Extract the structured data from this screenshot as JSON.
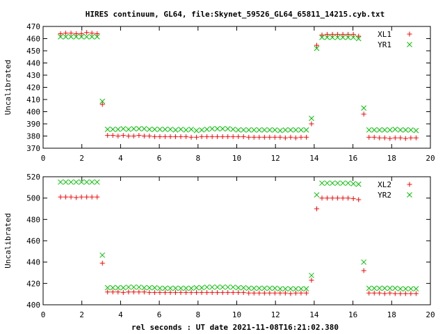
{
  "title": "HIRES continuum, GL64, file:Skynet_59526_GL64_65811_14215.cyb.txt",
  "xlabel": "rel seconds : UT date 2021-11-08T16:21:02.380",
  "colors": {
    "red": "#ff0000",
    "green": "#00c000",
    "axis": "#000000"
  },
  "chart_data": [
    {
      "type": "scatter",
      "ylabel": "Uncalibrated",
      "xlim": [
        0,
        20
      ],
      "ylim": [
        370,
        470
      ],
      "xticks": [
        0,
        2,
        4,
        6,
        8,
        10,
        12,
        14,
        16,
        18,
        20
      ],
      "yticks": [
        370,
        380,
        390,
        400,
        410,
        420,
        430,
        440,
        450,
        460,
        470
      ],
      "grid": false,
      "legend_position": "top-right",
      "x": [
        0.9,
        1.17,
        1.44,
        1.71,
        1.98,
        2.25,
        2.52,
        2.79,
        3.06,
        3.33,
        3.6,
        3.87,
        4.14,
        4.41,
        4.68,
        4.95,
        5.22,
        5.49,
        5.76,
        6.03,
        6.3,
        6.57,
        6.84,
        7.11,
        7.38,
        7.65,
        7.92,
        8.19,
        8.46,
        8.73,
        9.0,
        9.27,
        9.54,
        9.81,
        10.08,
        10.35,
        10.62,
        10.89,
        11.16,
        11.43,
        11.7,
        11.97,
        12.24,
        12.51,
        12.78,
        13.05,
        13.32,
        13.59,
        13.86,
        14.13,
        14.4,
        14.67,
        14.94,
        15.21,
        15.48,
        15.75,
        16.02,
        16.29,
        16.56,
        16.83,
        17.1,
        17.37,
        17.64,
        17.91,
        18.18,
        18.45,
        18.72,
        18.99,
        19.26
      ],
      "series": [
        {
          "name": "XL1",
          "marker": "plus",
          "color": "#ff0000",
          "values": [
            464,
            464.5,
            464.5,
            464,
            464,
            465,
            464.5,
            464,
            406,
            380.5,
            380.5,
            380,
            380.5,
            380,
            380,
            380.5,
            380,
            380,
            379.5,
            379.5,
            379.5,
            379.5,
            379.5,
            379.5,
            379.5,
            379,
            379,
            379.5,
            379.5,
            379.5,
            379.5,
            379.5,
            379.5,
            379.5,
            379.5,
            379.5,
            379,
            379,
            379,
            379,
            379,
            379,
            379,
            378.5,
            379,
            378.5,
            379,
            379,
            390,
            454.5,
            463,
            463.5,
            463.5,
            463.5,
            463.5,
            463.5,
            463.5,
            462,
            398,
            379,
            379,
            378.5,
            378.5,
            378,
            378.5,
            378.5,
            378,
            378.5,
            378.5
          ]
        },
        {
          "name": "YR1",
          "marker": "cross",
          "color": "#00c000",
          "values": [
            461.5,
            461.5,
            461.5,
            461.5,
            461.5,
            461.5,
            461.5,
            461.5,
            408.5,
            385.5,
            385.5,
            385.5,
            386,
            385.5,
            386,
            386,
            386,
            385.5,
            385.5,
            385.5,
            385.5,
            385.5,
            385,
            385.5,
            385,
            385.5,
            384.5,
            385,
            385.5,
            386,
            386,
            386,
            386,
            385.5,
            385,
            385,
            385,
            385,
            385,
            385,
            385,
            385,
            384.5,
            385,
            385,
            385,
            385,
            385,
            394.5,
            452,
            461,
            461,
            461,
            461,
            461,
            461,
            461,
            460,
            403,
            385,
            385,
            385,
            385,
            385,
            385.5,
            385,
            385,
            385,
            384.5
          ]
        }
      ]
    },
    {
      "type": "scatter",
      "ylabel": "Uncalibrated",
      "xlim": [
        0,
        20
      ],
      "ylim": [
        400,
        520
      ],
      "xticks": [
        0,
        2,
        4,
        6,
        8,
        10,
        12,
        14,
        16,
        18,
        20
      ],
      "yticks": [
        400,
        420,
        440,
        460,
        480,
        500,
        520
      ],
      "grid": false,
      "legend_position": "top-right",
      "x": [
        0.9,
        1.17,
        1.44,
        1.71,
        1.98,
        2.25,
        2.52,
        2.79,
        3.06,
        3.33,
        3.6,
        3.87,
        4.14,
        4.41,
        4.68,
        4.95,
        5.22,
        5.49,
        5.76,
        6.03,
        6.3,
        6.57,
        6.84,
        7.11,
        7.38,
        7.65,
        7.92,
        8.19,
        8.46,
        8.73,
        9.0,
        9.27,
        9.54,
        9.81,
        10.08,
        10.35,
        10.62,
        10.89,
        11.16,
        11.43,
        11.7,
        11.97,
        12.24,
        12.51,
        12.78,
        13.05,
        13.32,
        13.59,
        13.86,
        14.13,
        14.4,
        14.67,
        14.94,
        15.21,
        15.48,
        15.75,
        16.02,
        16.29,
        16.56,
        16.83,
        17.1,
        17.37,
        17.64,
        17.91,
        18.18,
        18.45,
        18.72,
        18.99,
        19.26
      ],
      "series": [
        {
          "name": "XL2",
          "marker": "plus",
          "color": "#ff0000",
          "values": [
            501,
            501,
            501,
            500.5,
            501,
            501,
            501,
            501,
            439,
            412,
            412,
            412,
            411.5,
            412,
            412,
            412,
            412,
            411.5,
            411.5,
            411.5,
            411.5,
            411.5,
            411.5,
            411.5,
            411.5,
            411.5,
            411.5,
            411.5,
            411.5,
            411.5,
            411.5,
            411.5,
            411.5,
            411.5,
            411.5,
            411.5,
            411,
            411,
            411,
            411,
            411,
            411,
            411,
            411,
            410.5,
            411,
            411,
            411,
            423,
            490,
            500,
            500,
            500,
            500,
            500,
            500,
            499.5,
            498.5,
            432,
            411,
            411,
            411,
            410.5,
            411,
            410.5,
            410.5,
            410.5,
            410.5,
            410.5
          ]
        },
        {
          "name": "YR2",
          "marker": "cross",
          "color": "#00c000",
          "values": [
            515,
            515,
            515,
            515,
            515,
            515,
            515,
            515,
            446.5,
            416,
            416,
            416,
            416,
            416.5,
            416.5,
            416.5,
            416,
            416,
            416,
            415.5,
            415.5,
            415.5,
            415.5,
            415.5,
            415.5,
            415.5,
            416,
            416,
            416.5,
            416.5,
            416.5,
            416.5,
            416.5,
            416.5,
            416,
            416,
            415.5,
            415.5,
            415.5,
            415.5,
            415.5,
            415.5,
            415,
            415,
            415,
            415,
            415,
            415,
            427.5,
            503,
            514,
            514,
            514,
            514,
            514,
            514,
            513.5,
            513,
            440,
            415.5,
            415.5,
            415.5,
            415.5,
            415.5,
            415.5,
            415,
            415,
            415,
            415
          ]
        }
      ]
    }
  ]
}
